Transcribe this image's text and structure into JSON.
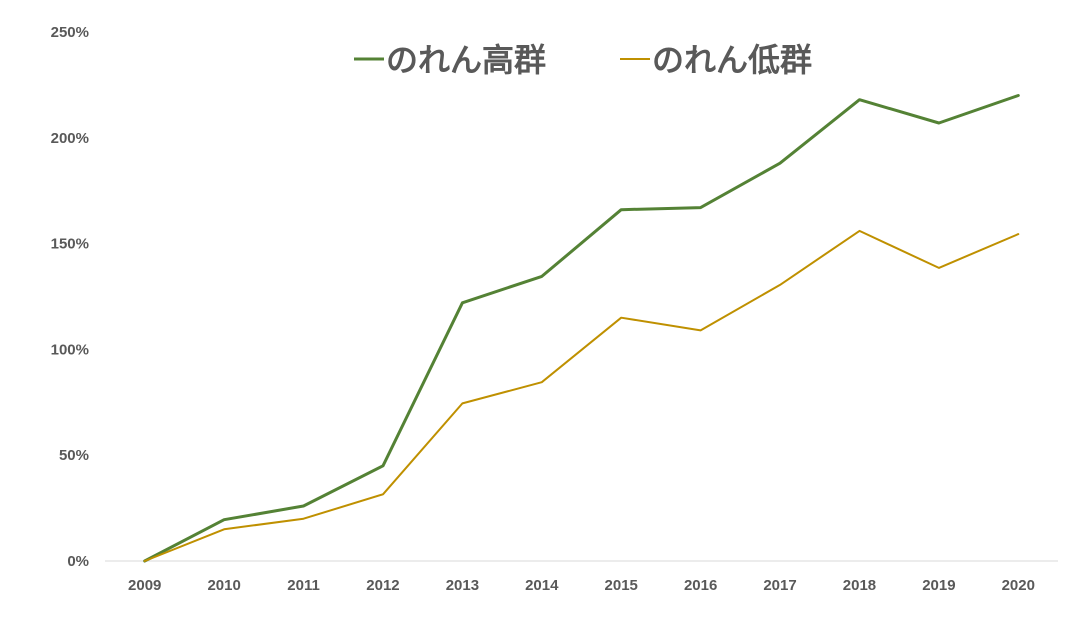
{
  "chart_data": {
    "type": "line",
    "x": [
      "2009",
      "2010",
      "2011",
      "2012",
      "2013",
      "2014",
      "2015",
      "2016",
      "2017",
      "2018",
      "2019",
      "2020"
    ],
    "series": [
      {
        "name": "のれん高群",
        "color": "#548235",
        "values": [
          0,
          19.5,
          26,
          45,
          122,
          134.5,
          166,
          167,
          188,
          218,
          207,
          220
        ]
      },
      {
        "name": "のれん低群",
        "color": "#BF9000",
        "values": [
          0,
          15,
          20,
          31.5,
          74.5,
          84.5,
          115,
          109,
          130.5,
          156,
          138.5,
          154.5
        ]
      }
    ],
    "yticks": [
      "0%",
      "50%",
      "100%",
      "150%",
      "200%",
      "250%"
    ],
    "ylim": [
      0,
      250
    ],
    "y_unit": "%",
    "grid": false,
    "legend_position": "top-center",
    "title": "",
    "xlabel": "",
    "ylabel": ""
  }
}
